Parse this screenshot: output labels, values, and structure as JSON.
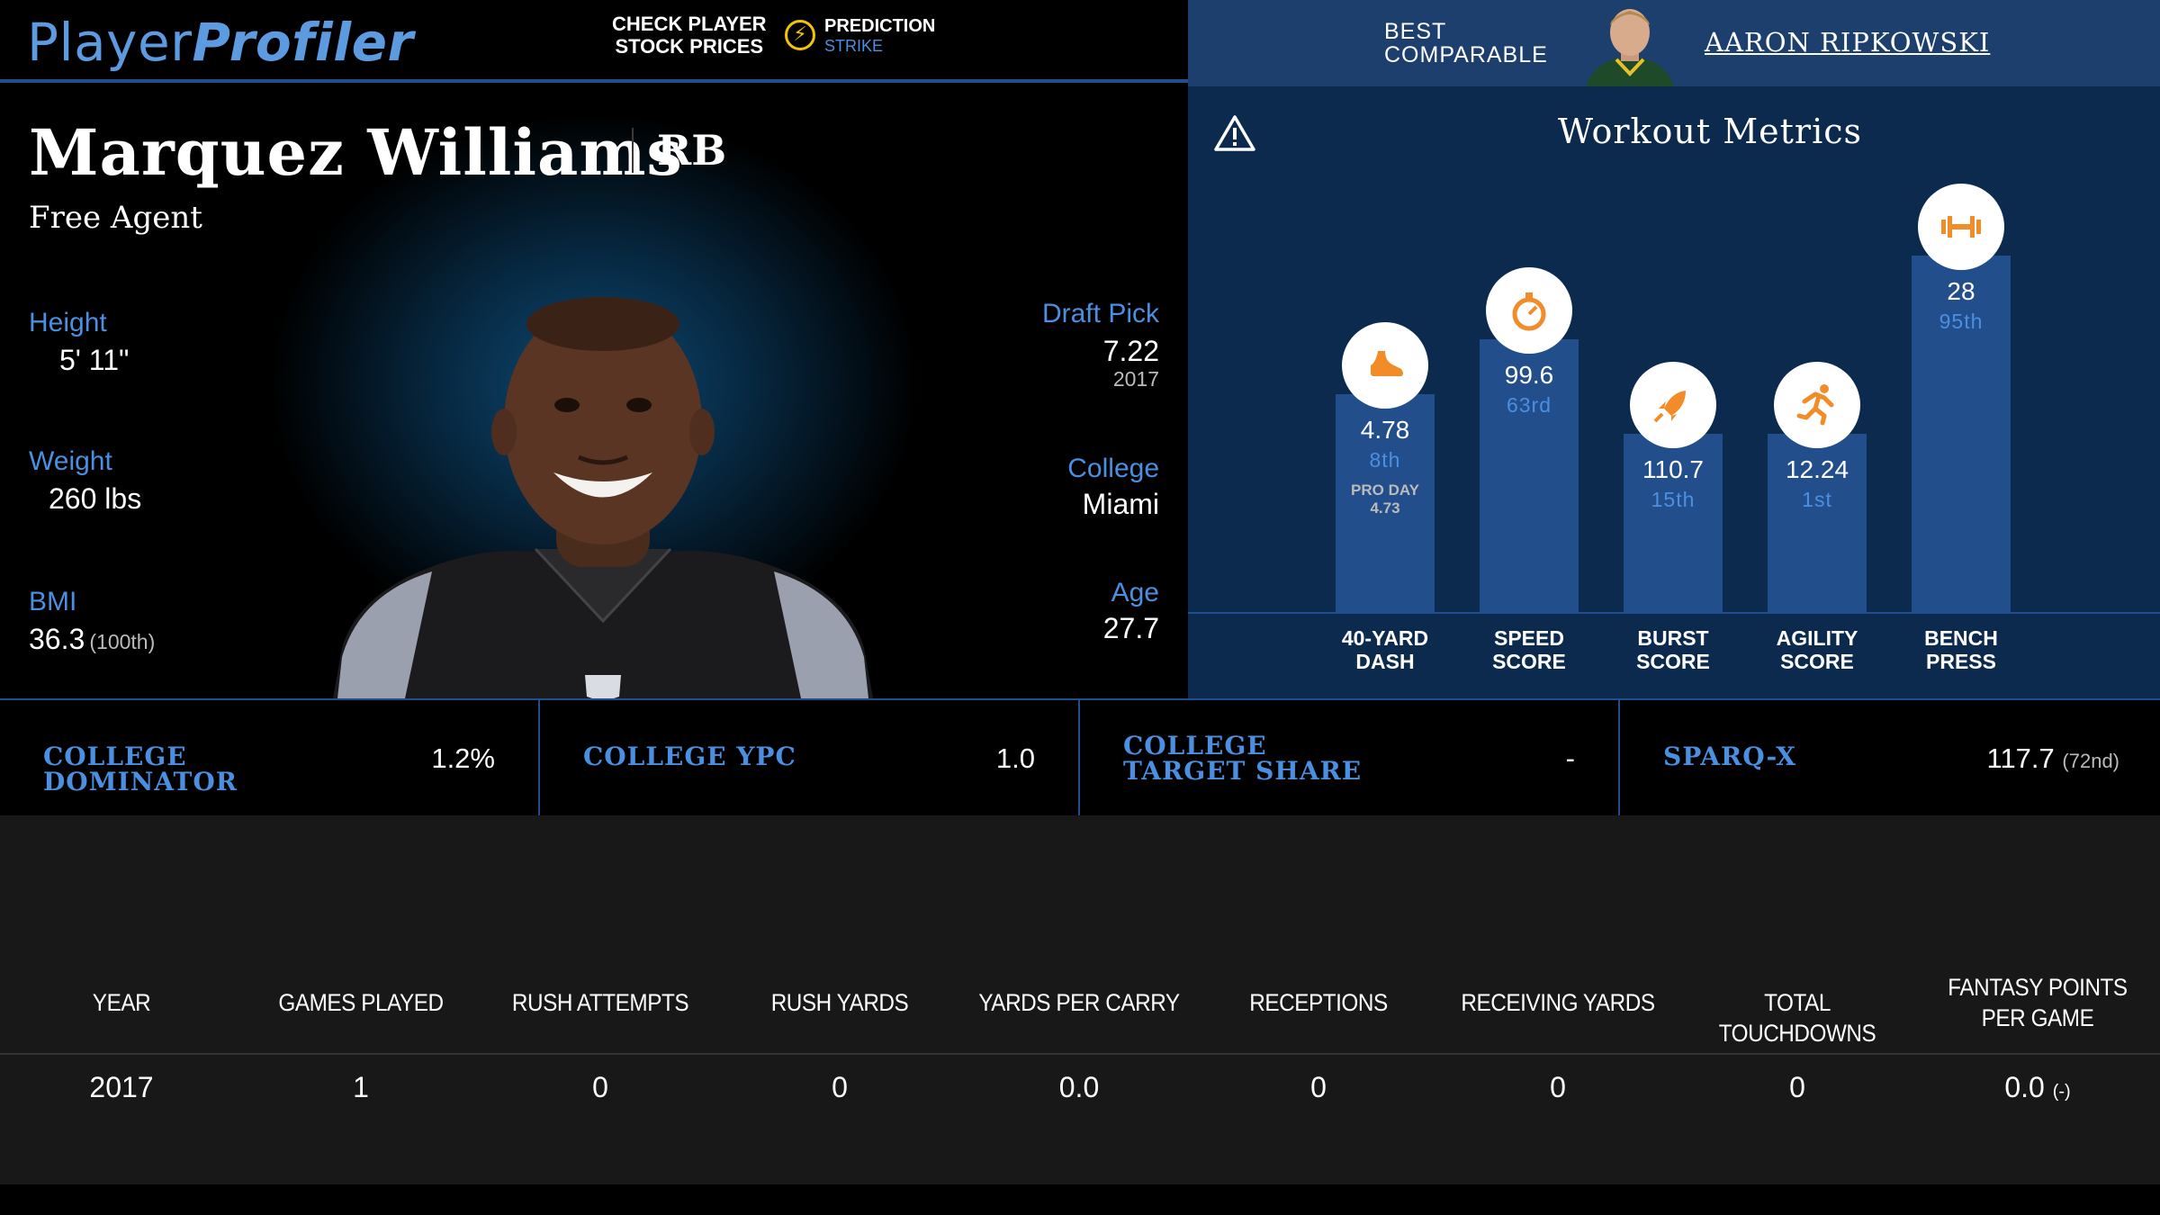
{
  "header": {
    "logo_part1": "Player",
    "logo_part2": "Profiler",
    "promo_line1": "CHECK PLAYER",
    "promo_line2": "STOCK PRICES",
    "partner_line1": "PREDICTION",
    "partner_line2": "STRIKE",
    "best_line1": "BEST",
    "best_line2": "COMPARABLE",
    "comparable_name": "AARON RIPKOWSKI"
  },
  "player": {
    "name": "Marquez Williams",
    "position": "RB",
    "team": "Free Agent",
    "height_label": "Height",
    "height": "5' 11\"",
    "weight_label": "Weight",
    "weight": "260 lbs",
    "bmi_label": "BMI",
    "bmi": "36.3",
    "bmi_rank": "(100th)",
    "draft_label": "Draft Pick",
    "draft_pick": "7.22",
    "draft_year": "2017",
    "college_label": "College",
    "college": "Miami",
    "age_label": "Age",
    "age": "27.7"
  },
  "workout": {
    "title": "Workout Metrics",
    "metrics": [
      {
        "label1": "40-YARD",
        "label2": "DASH",
        "value": "4.78",
        "percentile": "8th",
        "extra1": "PRO DAY",
        "extra2": "4.73",
        "icon": "shoe-icon",
        "level": 0.42
      },
      {
        "label1": "SPEED",
        "label2": "SCORE",
        "value": "99.6",
        "percentile": "63rd",
        "extra1": "",
        "extra2": "",
        "icon": "stopwatch-icon",
        "level": 0.63
      },
      {
        "label1": "BURST",
        "label2": "SCORE",
        "value": "110.7",
        "percentile": "15th",
        "extra1": "",
        "extra2": "",
        "icon": "rocket-icon",
        "level": 0.27
      },
      {
        "label1": "AGILITY",
        "label2": "SCORE",
        "value": "12.24",
        "percentile": "1st",
        "extra1": "",
        "extra2": "",
        "icon": "runner-icon",
        "level": 0.27
      },
      {
        "label1": "BENCH",
        "label2": "PRESS",
        "value": "28",
        "percentile": "95th",
        "extra1": "",
        "extra2": "",
        "icon": "dumbbell-icon",
        "level": 0.95
      }
    ]
  },
  "metrics_strip": [
    {
      "label": "COLLEGE DOMINATOR",
      "value": "1.2%",
      "rank": ""
    },
    {
      "label": "COLLEGE YPC",
      "value": "1.0",
      "rank": ""
    },
    {
      "label": "COLLEGE TARGET SHARE",
      "value": "-",
      "rank": ""
    },
    {
      "label": "SPARQ-X",
      "value": "117.7",
      "rank": "(72nd)"
    }
  ],
  "stats": {
    "headers": [
      "YEAR",
      "GAMES PLAYED",
      "RUSH ATTEMPTS",
      "RUSH YARDS",
      "YARDS PER CARRY",
      "RECEPTIONS",
      "RECEIVING YARDS",
      "TOTAL TOUCHDOWNS",
      "FANTASY POINTS PER GAME"
    ],
    "rows": [
      {
        "cells": [
          "2017",
          "1",
          "0",
          "0",
          "0.0",
          "0",
          "0",
          "0",
          "0.0"
        ],
        "fp_rank": "(-)"
      }
    ]
  },
  "colors": {
    "accent": "#4b8fe0",
    "bar": "#234e8c",
    "icon": "#f28c28",
    "panel": "#0c2a4d"
  }
}
